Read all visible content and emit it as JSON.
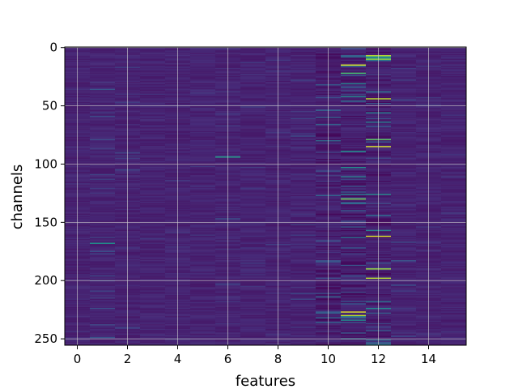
{
  "chart_data": {
    "type": "heatmap",
    "xlabel": "features",
    "ylabel": "channels",
    "x_ticks": [
      "0",
      "2",
      "4",
      "6",
      "8",
      "10",
      "12",
      "14"
    ],
    "y_ticks": [
      "0",
      "50",
      "100",
      "150",
      "200",
      "250"
    ],
    "x_tick_values": [
      0,
      2,
      4,
      6,
      8,
      10,
      12,
      14
    ],
    "y_tick_values": [
      0,
      50,
      100,
      150,
      200,
      250
    ],
    "xlim": [
      -0.5,
      15.5
    ],
    "ylim": [
      255.5,
      -0.5
    ],
    "n_features": 16,
    "n_channels": 256,
    "colormap": "viridis",
    "grid": true,
    "column_activity": [
      0.1,
      0.28,
      0.2,
      0.12,
      0.1,
      0.12,
      0.22,
      0.18,
      0.14,
      0.2,
      0.45,
      0.72,
      0.7,
      0.25,
      0.12,
      0.1
    ],
    "highlighted_cells": [
      {
        "feature": 11,
        "channel": 15,
        "value": 0.95
      },
      {
        "feature": 11,
        "channel": 22,
        "value": 0.7
      },
      {
        "feature": 11,
        "channel": 130,
        "value": 0.8
      },
      {
        "feature": 11,
        "channel": 227,
        "value": 0.95
      },
      {
        "feature": 11,
        "channel": 230,
        "value": 0.9
      },
      {
        "feature": 12,
        "channel": 7,
        "value": 0.9
      },
      {
        "feature": 12,
        "channel": 10,
        "value": 0.85
      },
      {
        "feature": 12,
        "channel": 44,
        "value": 0.9
      },
      {
        "feature": 12,
        "channel": 79,
        "value": 0.75
      },
      {
        "feature": 12,
        "channel": 85,
        "value": 0.95
      },
      {
        "feature": 12,
        "channel": 162,
        "value": 0.95
      },
      {
        "feature": 12,
        "channel": 190,
        "value": 0.85
      },
      {
        "feature": 12,
        "channel": 198,
        "value": 0.9
      },
      {
        "feature": 6,
        "channel": 94,
        "value": 0.55
      },
      {
        "feature": 1,
        "channel": 168,
        "value": 0.5
      }
    ],
    "colors": {
      "low": "#440154",
      "base": "#46337e",
      "grid": "#d0d0d0"
    }
  }
}
